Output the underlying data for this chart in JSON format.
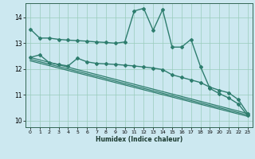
{
  "title": "",
  "xlabel": "Humidex (Indice chaleur)",
  "bg_color": "#cce8f0",
  "line_color": "#2e7d6e",
  "grid_color": "#99ccbb",
  "xlim": [
    -0.5,
    23.5
  ],
  "ylim": [
    9.75,
    14.55
  ],
  "xticks": [
    0,
    1,
    2,
    3,
    4,
    5,
    6,
    7,
    8,
    9,
    10,
    11,
    12,
    13,
    14,
    15,
    16,
    17,
    18,
    19,
    20,
    21,
    22,
    23
  ],
  "yticks": [
    10,
    11,
    12,
    13,
    14
  ],
  "series": [
    {
      "x": [
        0,
        1,
        2,
        3,
        4,
        5,
        6,
        7,
        8,
        9,
        10,
        11,
        12,
        13,
        14,
        15,
        16,
        17,
        18,
        19,
        20,
        21,
        22,
        23
      ],
      "y": [
        13.55,
        13.2,
        13.2,
        13.15,
        13.12,
        13.1,
        13.08,
        13.05,
        13.03,
        13.0,
        13.05,
        14.25,
        14.35,
        13.5,
        14.3,
        12.85,
        12.85,
        13.15,
        12.1,
        11.25,
        11.05,
        10.88,
        10.65,
        10.2
      ],
      "marker": "D",
      "markersize": 2.0,
      "linewidth": 1.0
    },
    {
      "x": [
        0,
        1,
        2,
        3,
        4,
        5,
        6,
        7,
        8,
        9,
        10,
        11,
        12,
        13,
        14,
        15,
        16,
        17,
        18,
        19,
        20,
        21,
        22,
        23
      ],
      "y": [
        12.45,
        12.55,
        12.25,
        12.18,
        12.12,
        12.42,
        12.28,
        12.22,
        12.2,
        12.18,
        12.15,
        12.12,
        12.08,
        12.04,
        11.98,
        11.78,
        11.68,
        11.58,
        11.48,
        11.3,
        11.18,
        11.08,
        10.82,
        10.28
      ],
      "marker": "D",
      "markersize": 2.0,
      "linewidth": 1.0
    },
    {
      "x": [
        0,
        23
      ],
      "y": [
        12.38,
        10.22
      ],
      "marker": null,
      "linewidth": 0.9
    },
    {
      "x": [
        0,
        23
      ],
      "y": [
        12.45,
        10.28
      ],
      "marker": null,
      "linewidth": 0.9
    },
    {
      "x": [
        0,
        23
      ],
      "y": [
        12.32,
        10.17
      ],
      "marker": null,
      "linewidth": 0.9
    }
  ]
}
